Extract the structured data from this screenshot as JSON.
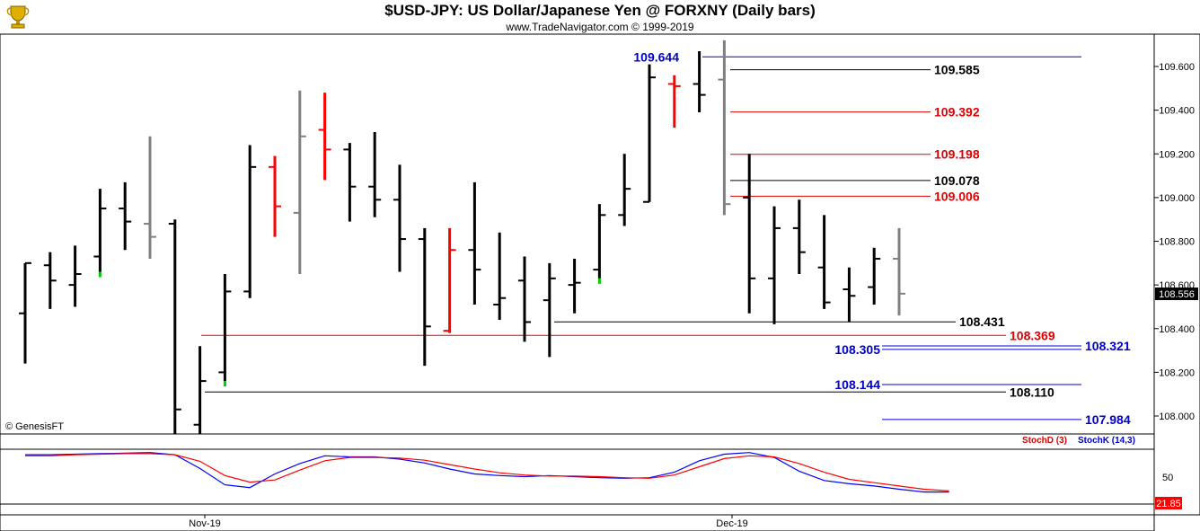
{
  "title": "$USD-JPY:  US Dollar/Japanese Yen @ FORXNY  (Daily bars)",
  "subtitle": "www.TradeNavigator.com © 1999-2019",
  "watermark": "© GenesisFT",
  "colors": {
    "up": "#000000",
    "down": "#ff0000",
    "neutral": "#808080",
    "blue_level": "#0000cc",
    "red_level": "#e00000",
    "black_level": "#000000",
    "green_tick": "#00cc00",
    "stochK": "#0000ff",
    "stochD": "#ff0000"
  },
  "chart_data": [
    {
      "type": "ohlc",
      "name": "main",
      "ylim": [
        107.92,
        109.72
      ],
      "yticks": [
        "108.000",
        "108.200",
        "108.400",
        "108.600",
        "108.800",
        "109.000",
        "109.200",
        "109.400",
        "109.600"
      ],
      "last_price_label": "108.556",
      "bars": [
        {
          "o": 108.47,
          "h": 108.7,
          "l": 108.24,
          "c": 108.7,
          "col": "up"
        },
        {
          "o": 108.69,
          "h": 108.75,
          "l": 108.49,
          "c": 108.62,
          "col": "up"
        },
        {
          "o": 108.6,
          "h": 108.78,
          "l": 108.5,
          "c": 108.65,
          "col": "up"
        },
        {
          "o": 108.73,
          "h": 109.04,
          "l": 108.66,
          "c": 108.95,
          "col": "up",
          "g": 108.66
        },
        {
          "o": 108.95,
          "h": 109.07,
          "l": 108.76,
          "c": 108.89,
          "col": "up"
        },
        {
          "o": 108.88,
          "h": 109.28,
          "l": 108.72,
          "c": 108.82,
          "col": "neutral"
        },
        {
          "o": 108.88,
          "h": 108.9,
          "l": 107.92,
          "c": 108.03,
          "col": "up"
        },
        {
          "o": 107.96,
          "h": 108.32,
          "l": 107.92,
          "c": 108.16,
          "col": "up"
        },
        {
          "o": 108.2,
          "h": 108.65,
          "l": 108.16,
          "c": 108.57,
          "col": "up",
          "g": 108.16
        },
        {
          "o": 108.57,
          "h": 109.24,
          "l": 108.54,
          "c": 109.14,
          "col": "up"
        },
        {
          "o": 109.14,
          "h": 109.19,
          "l": 108.82,
          "c": 108.96,
          "col": "down"
        },
        {
          "o": 108.93,
          "h": 109.49,
          "l": 108.65,
          "c": 109.28,
          "col": "neutral"
        },
        {
          "o": 109.31,
          "h": 109.48,
          "l": 109.08,
          "c": 109.22,
          "col": "down"
        },
        {
          "o": 109.22,
          "h": 109.25,
          "l": 108.89,
          "c": 109.05,
          "col": "up"
        },
        {
          "o": 109.05,
          "h": 109.3,
          "l": 108.91,
          "c": 108.99,
          "col": "up"
        },
        {
          "o": 108.99,
          "h": 109.15,
          "l": 108.66,
          "c": 108.81,
          "col": "up"
        },
        {
          "o": 108.81,
          "h": 108.86,
          "l": 108.23,
          "c": 108.41,
          "col": "up"
        },
        {
          "o": 108.39,
          "h": 108.86,
          "l": 108.38,
          "c": 108.76,
          "col": "down"
        },
        {
          "o": 108.76,
          "h": 109.07,
          "l": 108.51,
          "c": 108.67,
          "col": "up"
        },
        {
          "o": 108.51,
          "h": 108.84,
          "l": 108.44,
          "c": 108.54,
          "col": "up"
        },
        {
          "o": 108.62,
          "h": 108.73,
          "l": 108.34,
          "c": 108.43,
          "col": "up"
        },
        {
          "o": 108.53,
          "h": 108.7,
          "l": 108.27,
          "c": 108.63,
          "col": "up"
        },
        {
          "o": 108.6,
          "h": 108.72,
          "l": 108.47,
          "c": 108.61,
          "col": "up"
        },
        {
          "o": 108.67,
          "h": 108.97,
          "l": 108.63,
          "c": 108.92,
          "col": "up",
          "g": 108.63
        },
        {
          "o": 108.92,
          "h": 109.2,
          "l": 108.87,
          "c": 109.04,
          "col": "up"
        },
        {
          "o": 108.98,
          "h": 109.61,
          "l": 108.98,
          "c": 109.55,
          "col": "up"
        },
        {
          "o": 109.52,
          "h": 109.56,
          "l": 109.32,
          "c": 109.51,
          "col": "down"
        },
        {
          "o": 109.52,
          "h": 109.67,
          "l": 109.39,
          "c": 109.47,
          "col": "up"
        },
        {
          "o": 109.54,
          "h": 109.72,
          "l": 108.92,
          "c": 108.97,
          "col": "neutral"
        },
        {
          "o": 109.0,
          "h": 109.2,
          "l": 108.47,
          "c": 108.63,
          "col": "up"
        },
        {
          "o": 108.63,
          "h": 108.96,
          "l": 108.42,
          "c": 108.86,
          "col": "up"
        },
        {
          "o": 108.86,
          "h": 108.99,
          "l": 108.65,
          "c": 108.75,
          "col": "up"
        },
        {
          "o": 108.68,
          "h": 108.92,
          "l": 108.49,
          "c": 108.52,
          "col": "up"
        },
        {
          "o": 108.58,
          "h": 108.68,
          "l": 108.43,
          "c": 108.55,
          "col": "up"
        },
        {
          "o": 108.59,
          "h": 108.77,
          "l": 108.51,
          "c": 108.72,
          "col": "up"
        },
        {
          "o": 108.72,
          "h": 108.86,
          "l": 108.46,
          "c": 108.56,
          "col": "neutral"
        }
      ],
      "levels": [
        {
          "value": 109.644,
          "label": "109.644",
          "color": "blue_level",
          "x1": 782,
          "x2": 1204,
          "lx": 756,
          "anchor": "end"
        },
        {
          "value": 109.585,
          "label": "109.585",
          "color": "black_level",
          "x1": 813,
          "x2": 1036,
          "lx": 1040,
          "anchor": "start"
        },
        {
          "value": 109.392,
          "label": "109.392",
          "color": "red_level",
          "x1": 813,
          "x2": 1036,
          "lx": 1040,
          "anchor": "start"
        },
        {
          "value": 109.198,
          "label": "109.198",
          "color": "red_level",
          "x1": 813,
          "x2": 1036,
          "lx": 1040,
          "anchor": "start"
        },
        {
          "value": 109.078,
          "label": "109.078",
          "color": "black_level",
          "x1": 813,
          "x2": 1036,
          "lx": 1040,
          "anchor": "start"
        },
        {
          "value": 109.006,
          "label": "109.006",
          "color": "red_level",
          "x1": 813,
          "x2": 1036,
          "lx": 1040,
          "anchor": "start"
        },
        {
          "value": 108.431,
          "label": "108.431",
          "color": "black_level",
          "x1": 617,
          "x2": 1064,
          "lx": 1068,
          "anchor": "start"
        },
        {
          "value": 108.369,
          "label": "108.369",
          "color": "red_level",
          "x1": 224,
          "x2": 1120,
          "lx": 1124,
          "anchor": "start"
        },
        {
          "value": 108.321,
          "label": "108.321",
          "color": "blue_level",
          "x1": 982,
          "x2": 1204,
          "lx": 1208,
          "anchor": "start"
        },
        {
          "value": 108.305,
          "label": "108.305",
          "color": "blue_level",
          "x1": 982,
          "x2": 1204,
          "lx": 980,
          "anchor": "end"
        },
        {
          "value": 108.144,
          "label": "108.144",
          "color": "blue_level",
          "x1": 982,
          "x2": 1204,
          "lx": 980,
          "anchor": "end"
        },
        {
          "value": 108.11,
          "label": "108.110",
          "color": "black_level",
          "x1": 228,
          "x2": 1120,
          "lx": 1124,
          "anchor": "start"
        },
        {
          "value": 107.984,
          "label": "107.984",
          "color": "blue_level",
          "x1": 982,
          "x2": 1204,
          "lx": 1208,
          "anchor": "start"
        }
      ]
    },
    {
      "type": "line",
      "name": "stochastic",
      "ylim": [
        0,
        100
      ],
      "yticks": [
        "50"
      ],
      "last_value_label": "21.85",
      "legend": [
        "StochD (3)",
        "StochK (14,3)"
      ],
      "series": [
        {
          "name": "StochK (14,3)",
          "color": "stochK",
          "values": [
            90,
            90,
            91,
            92,
            93,
            94,
            90,
            65,
            35,
            30,
            55,
            74,
            88,
            86,
            86,
            82,
            75,
            64,
            55,
            52,
            50,
            52,
            50,
            48,
            47,
            48,
            58,
            79,
            91,
            94,
            85,
            60,
            43,
            37,
            33,
            27,
            22,
            22
          ]
        },
        {
          "name": "StochD (3)",
          "color": "stochD",
          "values": [
            88,
            88,
            90,
            91,
            92,
            92,
            90,
            78,
            52,
            40,
            44,
            62,
            79,
            85,
            85,
            84,
            80,
            72,
            64,
            57,
            53,
            51,
            51,
            50,
            48,
            47,
            53,
            68,
            83,
            88,
            86,
            74,
            58,
            45,
            39,
            33,
            27,
            24
          ]
        }
      ]
    }
  ],
  "xlabels": [
    "Nov-19",
    "Dec-19"
  ]
}
